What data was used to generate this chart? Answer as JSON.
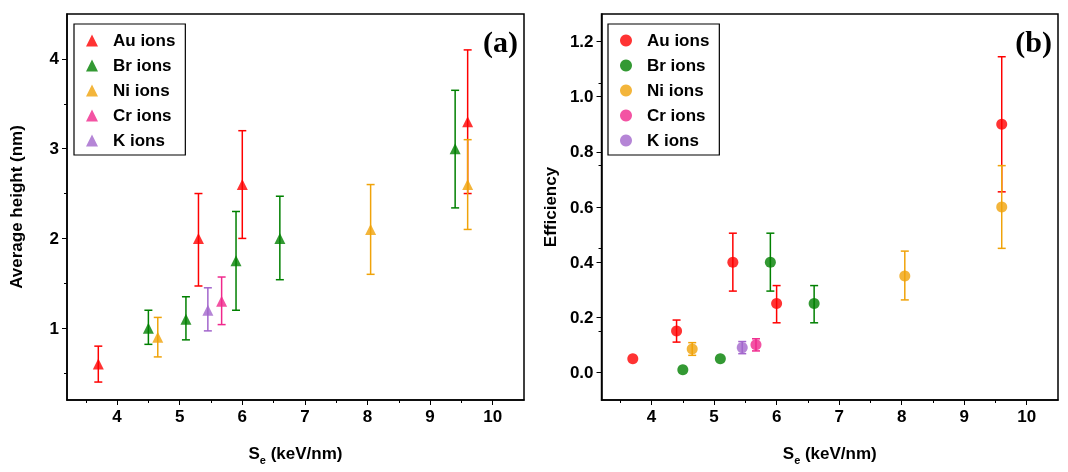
{
  "chart_data": [
    {
      "type": "scatter",
      "xlabel": "S$_{e}$ (keV/nm)",
      "ylabel": "Average height (nm)",
      "annotations": [
        "(a)"
      ],
      "xlim": [
        3.2,
        10.5
      ],
      "xticks": [
        4,
        5,
        6,
        7,
        8,
        9,
        10
      ],
      "ylim": [
        0.2,
        4.5
      ],
      "yticks": [
        1,
        2,
        3,
        4
      ],
      "legend": "top left",
      "marker": "triangle",
      "grid": false,
      "series": [
        {
          "name": "Au ions",
          "color": "#ff0000",
          "x": [
            3.7,
            5.3,
            6.0,
            9.6
          ],
          "values": [
            0.6,
            2.0,
            2.6,
            3.3
          ],
          "errors": [
            [
              0.4,
              0.8
            ],
            [
              1.47,
              2.5
            ],
            [
              2.0,
              3.2
            ],
            [
              2.5,
              4.1
            ]
          ]
        },
        {
          "name": "Br ions",
          "color": "#008000",
          "x": [
            4.5,
            5.1,
            5.9,
            6.6,
            9.4
          ],
          "values": [
            1.0,
            1.1,
            1.75,
            2.0,
            3.0
          ],
          "errors": [
            [
              0.82,
              1.2
            ],
            [
              0.87,
              1.35
            ],
            [
              1.2,
              2.3
            ],
            [
              1.54,
              2.47
            ],
            [
              2.34,
              3.65
            ]
          ]
        },
        {
          "name": "Ni ions",
          "color": "#f0a30a",
          "x": [
            4.65,
            8.05,
            9.6
          ],
          "values": [
            0.9,
            2.1,
            2.6
          ],
          "errors": [
            [
              0.68,
              1.12
            ],
            [
              1.6,
              2.6
            ],
            [
              2.1,
              3.1
            ]
          ]
        },
        {
          "name": "Cr ions",
          "color": "#f0288c",
          "x": [
            5.67
          ],
          "values": [
            1.3
          ],
          "errors": [
            [
              1.04,
              1.57
            ]
          ]
        },
        {
          "name": "K ions",
          "color": "#a366cc",
          "x": [
            5.45
          ],
          "values": [
            1.2
          ],
          "errors": [
            [
              0.97,
              1.45
            ]
          ]
        }
      ]
    },
    {
      "type": "scatter",
      "xlabel": "S$_{e}$ (keV/nm)",
      "ylabel": "Efficiency",
      "annotations": [
        "(b)"
      ],
      "xlim": [
        3.2,
        10.5
      ],
      "xticks": [
        4,
        5,
        6,
        7,
        8,
        9,
        10
      ],
      "ylim": [
        -0.1,
        1.3
      ],
      "yticks": [
        {
          "value": 0,
          "label": "0.0"
        },
        0.2,
        0.4,
        0.6,
        0.8,
        {
          "value": 1,
          "label": "1.0"
        },
        1.2
      ],
      "legend": "top left",
      "marker": "circle",
      "grid": false,
      "series": [
        {
          "name": "Au ions",
          "color": "#ff0000",
          "x": [
            3.7,
            4.4,
            5.3,
            6.0,
            9.6
          ],
          "values": [
            0.05,
            0.15,
            0.4,
            0.25,
            0.9
          ],
          "errors": [
            null,
            [
              0.11,
              0.19
            ],
            [
              0.295,
              0.505
            ],
            [
              0.18,
              0.315
            ],
            [
              0.655,
              1.145
            ]
          ]
        },
        {
          "name": "Br ions",
          "color": "#008000",
          "x": [
            4.5,
            5.1,
            5.9,
            6.6
          ],
          "values": [
            0.01,
            0.05,
            0.4,
            0.25
          ],
          "errors": [
            null,
            null,
            [
              0.295,
              0.505
            ],
            [
              0.18,
              0.315
            ]
          ]
        },
        {
          "name": "Ni ions",
          "color": "#f0a30a",
          "x": [
            4.65,
            8.05,
            9.6
          ],
          "values": [
            0.085,
            0.35,
            0.6
          ],
          "errors": [
            [
              0.062,
              0.108
            ],
            [
              0.263,
              0.44
            ],
            [
              0.45,
              0.75
            ]
          ]
        },
        {
          "name": "Cr ions",
          "color": "#f0288c",
          "x": [
            5.67
          ],
          "values": [
            0.1
          ],
          "errors": [
            [
              0.078,
              0.122
            ]
          ]
        },
        {
          "name": "K ions",
          "color": "#a366cc",
          "x": [
            5.45
          ],
          "values": [
            0.09
          ],
          "errors": [
            [
              0.068,
              0.112
            ]
          ]
        }
      ]
    }
  ]
}
